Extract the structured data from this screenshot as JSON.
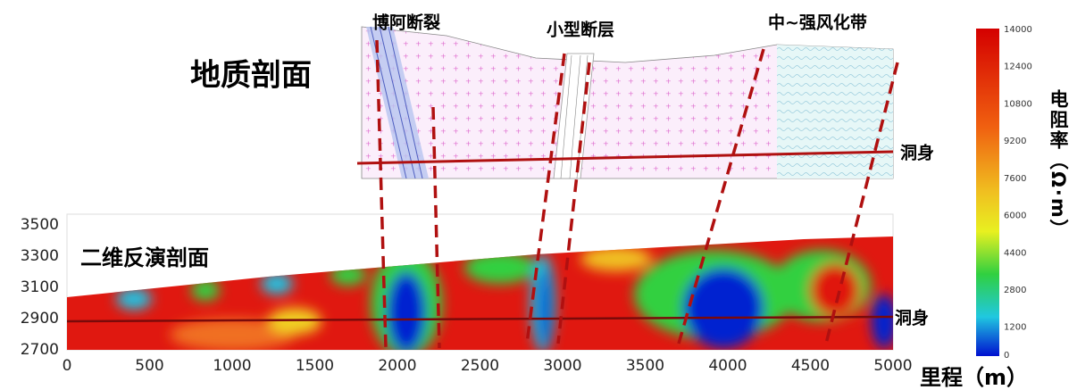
{
  "geology": {
    "title": "地质剖面",
    "labels": [
      "博阿断裂",
      "小型断层",
      "中~强风化带"
    ],
    "tunnel": "洞身"
  },
  "inversion": {
    "title": "二维反演剖面",
    "tunnel": "洞身",
    "x_axis_label": "里程（m）",
    "xticks": [
      0,
      500,
      1000,
      1500,
      2000,
      2500,
      3000,
      3500,
      4000,
      4500,
      5000
    ],
    "yticks": [
      3500,
      3300,
      3100,
      2900,
      2700
    ]
  },
  "colorbar": {
    "label": "电阻率（Ω·m）",
    "ticks": [
      14000,
      12400,
      10800,
      9200,
      7600,
      6000,
      4400,
      2800,
      1200,
      0
    ]
  }
}
